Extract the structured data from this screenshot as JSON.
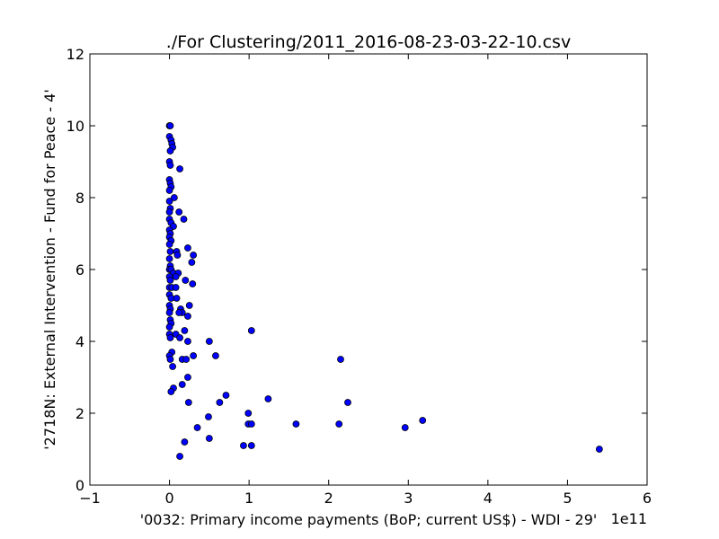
{
  "chart_data": {
    "type": "scatter",
    "title": "./For Clustering/2011_2016-08-23-03-22-10.csv",
    "xlabel": "'0032: Primary income payments  (BoP; current US$) - WDI - 29'",
    "ylabel": "'2718N: External Intervention - Fund for Peace - 4'",
    "x_scale_label": "1e11",
    "x_scale_factor": 100000000000,
    "xlim": [
      -1,
      6
    ],
    "ylim": [
      0,
      12
    ],
    "xticks": [
      -1,
      0,
      1,
      2,
      3,
      4,
      5,
      6
    ],
    "yticks": [
      0,
      2,
      4,
      6,
      8,
      10,
      12
    ],
    "grid": false,
    "legend": "none",
    "marker_color": "#0000ff",
    "marker_edge_color": "#000000",
    "points_note": "x values are in units of 1e11 US$",
    "points": [
      {
        "x": 0.0,
        "y": 10.0
      },
      {
        "x": 0.01,
        "y": 10.0
      },
      {
        "x": 0.0,
        "y": 9.7
      },
      {
        "x": 0.02,
        "y": 9.6
      },
      {
        "x": 0.03,
        "y": 9.5
      },
      {
        "x": 0.04,
        "y": 9.4
      },
      {
        "x": 0.01,
        "y": 9.3
      },
      {
        "x": 0.0,
        "y": 9.0
      },
      {
        "x": 0.01,
        "y": 8.9
      },
      {
        "x": 0.13,
        "y": 8.8
      },
      {
        "x": 0.0,
        "y": 8.5
      },
      {
        "x": 0.01,
        "y": 8.4
      },
      {
        "x": 0.02,
        "y": 8.3
      },
      {
        "x": 0.0,
        "y": 8.2
      },
      {
        "x": 0.06,
        "y": 8.0
      },
      {
        "x": 0.0,
        "y": 7.9
      },
      {
        "x": 0.01,
        "y": 7.7
      },
      {
        "x": 0.0,
        "y": 7.6
      },
      {
        "x": 0.12,
        "y": 7.6
      },
      {
        "x": 0.18,
        "y": 7.4
      },
      {
        "x": 0.0,
        "y": 7.4
      },
      {
        "x": 0.02,
        "y": 7.3
      },
      {
        "x": 0.05,
        "y": 7.2
      },
      {
        "x": 0.0,
        "y": 7.1
      },
      {
        "x": 0.01,
        "y": 7.0
      },
      {
        "x": 0.0,
        "y": 6.9
      },
      {
        "x": 0.02,
        "y": 6.8
      },
      {
        "x": 0.0,
        "y": 6.7
      },
      {
        "x": 0.23,
        "y": 6.6
      },
      {
        "x": 0.01,
        "y": 6.5
      },
      {
        "x": 0.09,
        "y": 6.5
      },
      {
        "x": 0.1,
        "y": 6.4
      },
      {
        "x": 0.3,
        "y": 6.4
      },
      {
        "x": 0.0,
        "y": 6.3
      },
      {
        "x": 0.28,
        "y": 6.2
      },
      {
        "x": 0.01,
        "y": 6.1
      },
      {
        "x": 0.0,
        "y": 6.0
      },
      {
        "x": 0.02,
        "y": 6.0
      },
      {
        "x": 0.05,
        "y": 5.9
      },
      {
        "x": 0.11,
        "y": 5.9
      },
      {
        "x": 0.0,
        "y": 5.8
      },
      {
        "x": 0.08,
        "y": 5.8
      },
      {
        "x": 0.2,
        "y": 5.7
      },
      {
        "x": 0.01,
        "y": 5.7
      },
      {
        "x": 0.29,
        "y": 5.6
      },
      {
        "x": 0.0,
        "y": 5.5
      },
      {
        "x": 0.03,
        "y": 5.5
      },
      {
        "x": 0.08,
        "y": 5.5
      },
      {
        "x": 0.0,
        "y": 5.3
      },
      {
        "x": 0.02,
        "y": 5.2
      },
      {
        "x": 0.09,
        "y": 5.2
      },
      {
        "x": 0.0,
        "y": 5.0
      },
      {
        "x": 0.25,
        "y": 5.0
      },
      {
        "x": 0.01,
        "y": 4.9
      },
      {
        "x": 0.14,
        "y": 4.9
      },
      {
        "x": 0.16,
        "y": 4.8
      },
      {
        "x": 0.12,
        "y": 4.8
      },
      {
        "x": 0.0,
        "y": 4.8
      },
      {
        "x": 0.23,
        "y": 4.7
      },
      {
        "x": 0.01,
        "y": 4.6
      },
      {
        "x": 0.02,
        "y": 4.5
      },
      {
        "x": 0.0,
        "y": 4.4
      },
      {
        "x": 0.19,
        "y": 4.3
      },
      {
        "x": 1.03,
        "y": 4.3
      },
      {
        "x": 0.0,
        "y": 4.2
      },
      {
        "x": 0.08,
        "y": 4.2
      },
      {
        "x": 0.01,
        "y": 4.1
      },
      {
        "x": 0.13,
        "y": 4.1
      },
      {
        "x": 0.23,
        "y": 4.0
      },
      {
        "x": 0.5,
        "y": 4.0
      },
      {
        "x": 0.03,
        "y": 3.7
      },
      {
        "x": 0.0,
        "y": 3.6
      },
      {
        "x": 0.3,
        "y": 3.6
      },
      {
        "x": 0.58,
        "y": 3.6
      },
      {
        "x": 0.01,
        "y": 3.5
      },
      {
        "x": 0.16,
        "y": 3.5
      },
      {
        "x": 0.21,
        "y": 3.5
      },
      {
        "x": 2.15,
        "y": 3.5
      },
      {
        "x": 0.04,
        "y": 3.3
      },
      {
        "x": 0.23,
        "y": 3.0
      },
      {
        "x": 0.16,
        "y": 2.8
      },
      {
        "x": 0.05,
        "y": 2.7
      },
      {
        "x": 0.02,
        "y": 2.6
      },
      {
        "x": 0.71,
        "y": 2.5
      },
      {
        "x": 1.24,
        "y": 2.4
      },
      {
        "x": 0.24,
        "y": 2.3
      },
      {
        "x": 0.63,
        "y": 2.3
      },
      {
        "x": 2.24,
        "y": 2.3
      },
      {
        "x": 0.99,
        "y": 2.0
      },
      {
        "x": 0.49,
        "y": 1.9
      },
      {
        "x": 3.18,
        "y": 1.8
      },
      {
        "x": 0.99,
        "y": 1.7
      },
      {
        "x": 1.03,
        "y": 1.7
      },
      {
        "x": 1.59,
        "y": 1.7
      },
      {
        "x": 2.13,
        "y": 1.7
      },
      {
        "x": 0.35,
        "y": 1.6
      },
      {
        "x": 2.96,
        "y": 1.6
      },
      {
        "x": 0.5,
        "y": 1.3
      },
      {
        "x": 0.19,
        "y": 1.2
      },
      {
        "x": 0.93,
        "y": 1.1
      },
      {
        "x": 1.03,
        "y": 1.1
      },
      {
        "x": 5.4,
        "y": 1.0
      },
      {
        "x": 0.13,
        "y": 0.8
      }
    ]
  }
}
